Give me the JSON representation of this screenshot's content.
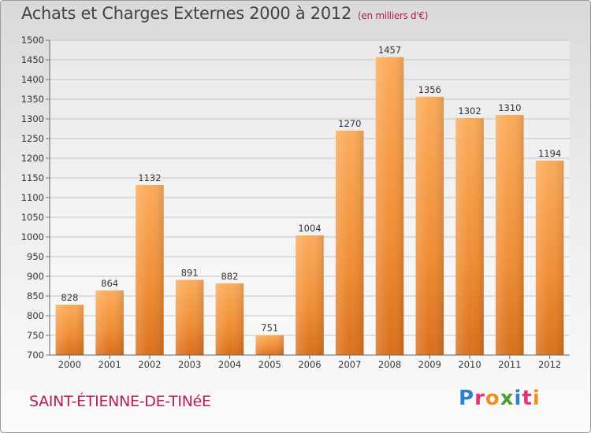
{
  "chart_data": {
    "type": "bar",
    "title": "Achats et Charges Externes 2000 à 2012",
    "subtitle": "(en milliers d'€)",
    "categories": [
      "2000",
      "2001",
      "2002",
      "2003",
      "2004",
      "2005",
      "2006",
      "2007",
      "2008",
      "2009",
      "2010",
      "2011",
      "2012"
    ],
    "values": [
      828,
      864,
      1132,
      891,
      882,
      751,
      1004,
      1270,
      1457,
      1356,
      1302,
      1310,
      1194
    ],
    "ylim": [
      700,
      1500
    ],
    "yticks": [
      700,
      750,
      800,
      850,
      900,
      950,
      1000,
      1050,
      1100,
      1150,
      1200,
      1250,
      1300,
      1350,
      1400,
      1450,
      1500
    ],
    "grid": true,
    "xlabel": "",
    "ylabel": "",
    "bar_color": "#f0923a"
  },
  "footer": {
    "city": "SAINT-ÉTIENNE-DE-TINéE",
    "logo_letters": [
      {
        "char": "P",
        "color": "#2d7fd1"
      },
      {
        "char": "r",
        "color": "#e0367a"
      },
      {
        "char": "o",
        "color": "#ef8f1f"
      },
      {
        "char": "x",
        "color": "#4a9f2f"
      },
      {
        "char": "i",
        "color": "#2d7fd1"
      },
      {
        "char": "t",
        "color": "#e0367a"
      },
      {
        "char": "i",
        "color": "#ef8f1f"
      }
    ]
  }
}
